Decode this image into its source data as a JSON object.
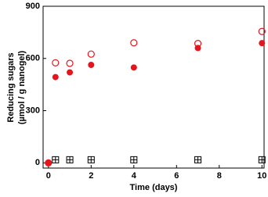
{
  "chart_data": {
    "type": "scatter",
    "xlabel": "Time (days)",
    "ylabel": [
      "Reducing sugars",
      "(µmol / g nanogel)"
    ],
    "xlim": [
      -0.25,
      10.1
    ],
    "ylim": [
      -30,
      900
    ],
    "xticks": [
      0,
      2,
      4,
      6,
      8,
      10
    ],
    "yticks": [
      0,
      300,
      600,
      900
    ],
    "series": [
      {
        "color": "#e8141c",
        "marker": "filled-circle",
        "x": [
          0,
          0.33,
          1,
          2,
          4,
          7,
          10
        ],
        "values": [
          0,
          493,
          520,
          563,
          548,
          660,
          688
        ]
      },
      {
        "color": "#e8141c",
        "marker": "open-circle",
        "x": [
          0,
          0.33,
          1,
          2,
          4,
          7,
          10
        ],
        "values": [
          0,
          575,
          572,
          625,
          690,
          686,
          755
        ]
      },
      {
        "color": "#000000",
        "marker": "crossed-square",
        "x": [
          0.33,
          1,
          2,
          4,
          7,
          10
        ],
        "values": [
          18,
          18,
          18,
          18,
          18,
          18
        ]
      }
    ]
  }
}
